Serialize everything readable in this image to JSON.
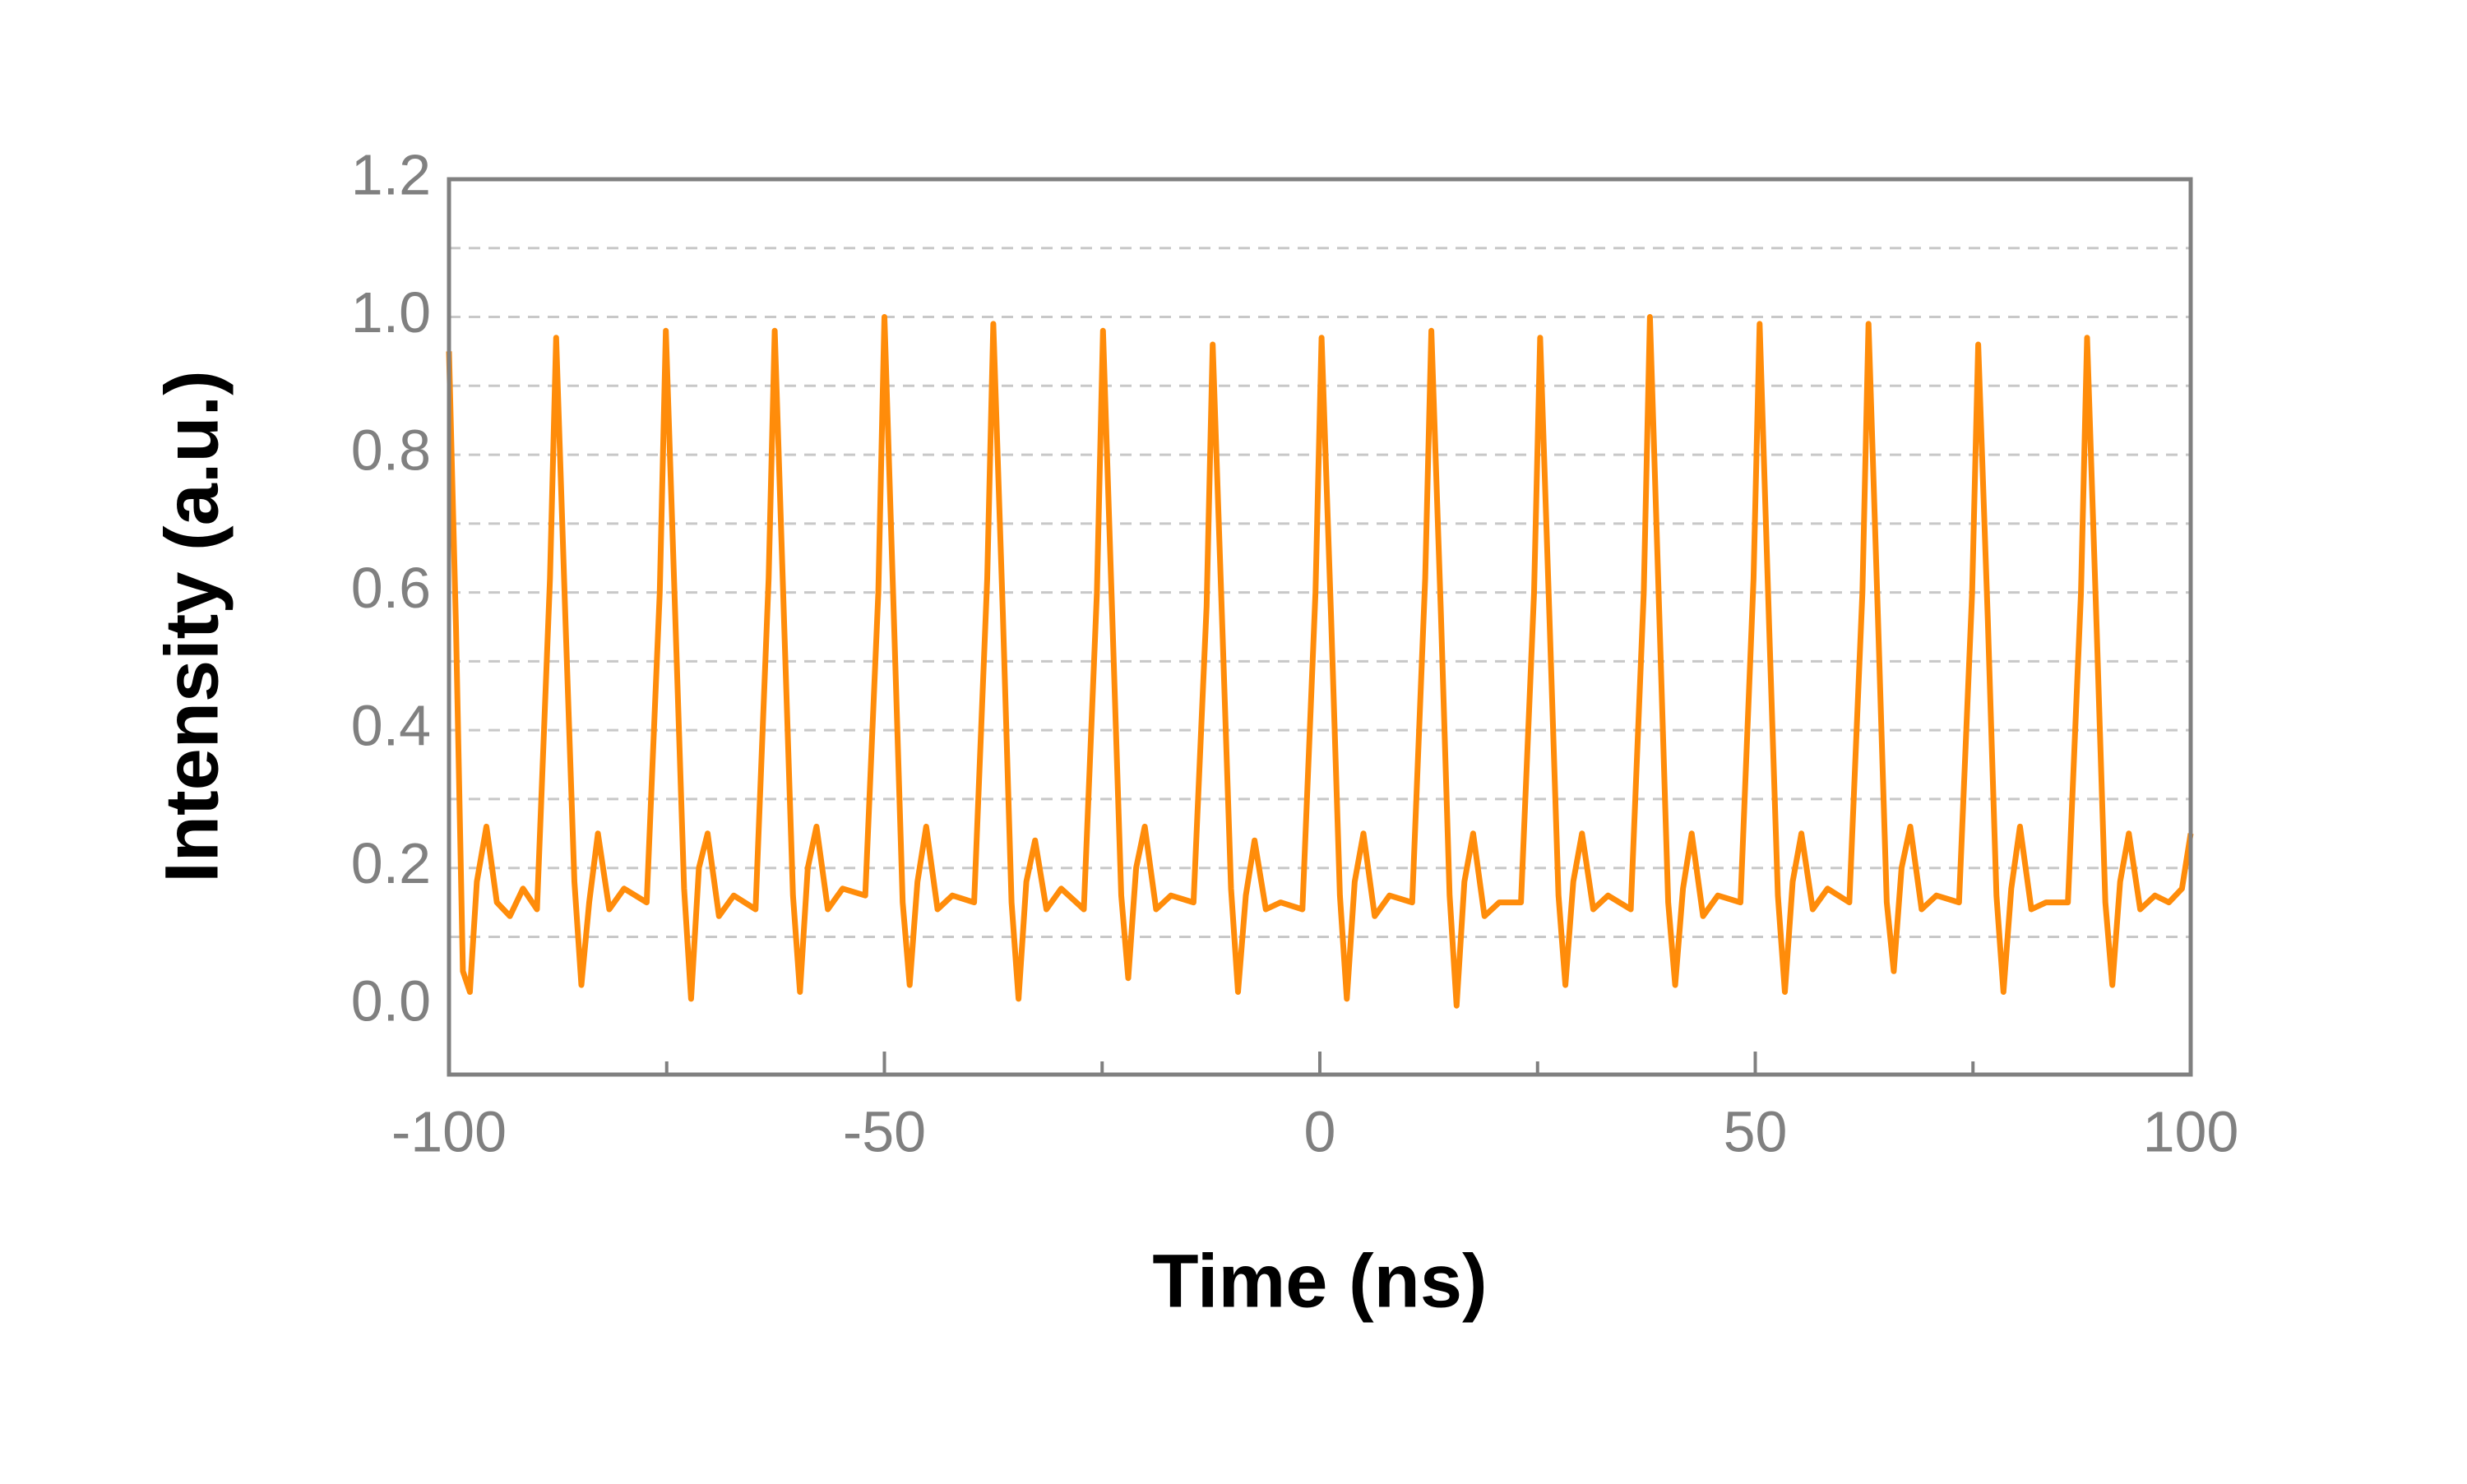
{
  "chart_data": {
    "type": "line",
    "xlabel": "Time (ns)",
    "ylabel": "Intensity (a.u.)",
    "xlim": [
      -100,
      100
    ],
    "xticks": [
      -100,
      -50,
      0,
      50,
      100
    ],
    "xminor_ticks": [
      -75,
      -25,
      25,
      75
    ],
    "ylim": [
      -0.1,
      1.2
    ],
    "yticks": [
      {
        "value": 0,
        "label": "0.0"
      },
      {
        "value": 0.2,
        "label": "0.2"
      },
      {
        "value": 0.4,
        "label": "0.4"
      },
      {
        "value": 0.6,
        "label": "0.6"
      },
      {
        "value": 0.8,
        "label": "0.8"
      },
      {
        "value": 1,
        "label": "1.0"
      },
      {
        "value": 1.2,
        "label": "1.2"
      }
    ],
    "ygrid": [
      0.1,
      0.2,
      0.3,
      0.4,
      0.5,
      0.6,
      0.7,
      0.8,
      0.9,
      1.0,
      1.1
    ],
    "grid": true,
    "color": "#ff8c0a",
    "x": [
      -100,
      -99.2,
      -98.4,
      -97.6,
      -96.8,
      -95.7,
      -94.5,
      -93,
      -91.5,
      -89.9,
      -88.4,
      -87.7,
      -86.6,
      -85.6,
      -84.8,
      -83.9,
      -82.9,
      -81.6,
      -79.9,
      -77.3,
      -75.8,
      -75.1,
      -74.0,
      -73.0,
      -72.2,
      -71.3,
      -70.3,
      -69.0,
      -67.3,
      -64.8,
      -63.3,
      -62.6,
      -61.5,
      -60.5,
      -59.7,
      -58.8,
      -57.8,
      -56.5,
      -54.8,
      -52.2,
      -50.7,
      -50.0,
      -48.9,
      -47.9,
      -47.1,
      -46.2,
      -45.2,
      -43.9,
      -42.2,
      -39.7,
      -38.2,
      -37.5,
      -36.4,
      -35.4,
      -34.6,
      -33.7,
      -32.7,
      -31.4,
      -29.7,
      -27.1,
      -25.6,
      -24.9,
      -23.8,
      -22.8,
      -22.0,
      -21.1,
      -20.1,
      -18.8,
      -17.1,
      -14.5,
      -13.0,
      -12.3,
      -11.2,
      -10.2,
      -9.4,
      -8.5,
      -7.5,
      -6.2,
      -4.5,
      -2.0,
      -0.5,
      0.2,
      1.3,
      2.3,
      3.1,
      4.0,
      5.0,
      6.3,
      8.0,
      10.6,
      12.1,
      12.8,
      13.9,
      14.9,
      15.7,
      16.6,
      17.6,
      18.9,
      20.6,
      23.1,
      24.6,
      25.3,
      26.4,
      27.4,
      28.2,
      29.1,
      30.1,
      31.4,
      33.1,
      35.7,
      37.2,
      37.9,
      39.0,
      40.0,
      40.8,
      41.7,
      42.7,
      44.0,
      45.7,
      48.3,
      49.8,
      50.5,
      51.6,
      52.6,
      53.4,
      54.3,
      55.3,
      56.6,
      58.3,
      60.8,
      62.3,
      63.0,
      64.1,
      65.1,
      65.9,
      66.8,
      67.8,
      69.1,
      70.8,
      73.4,
      74.9,
      75.6,
      76.7,
      77.7,
      78.5,
      79.4,
      80.4,
      81.7,
      83.4,
      85.9,
      87.4,
      88.1,
      89.2,
      90.2,
      91.0,
      91.9,
      92.9,
      94.2,
      95.9,
      97.5,
      99,
      100
    ],
    "series": [
      {
        "name": "Intensity",
        "values": [
          0.95,
          0.55,
          0.05,
          0.02,
          0.18,
          0.26,
          0.15,
          0.13,
          0.17,
          0.14,
          0.62,
          0.97,
          0.55,
          0.18,
          0.03,
          0.15,
          0.25,
          0.14,
          0.17,
          0.15,
          0.6,
          0.98,
          0.56,
          0.17,
          0.01,
          0.2,
          0.25,
          0.13,
          0.16,
          0.14,
          0.62,
          0.98,
          0.55,
          0.16,
          0.02,
          0.2,
          0.26,
          0.14,
          0.17,
          0.16,
          0.6,
          1.0,
          0.56,
          0.15,
          0.03,
          0.18,
          0.26,
          0.14,
          0.16,
          0.15,
          0.62,
          0.99,
          0.57,
          0.15,
          0.01,
          0.18,
          0.24,
          0.14,
          0.17,
          0.14,
          0.6,
          0.98,
          0.55,
          0.16,
          0.04,
          0.2,
          0.26,
          0.14,
          0.16,
          0.15,
          0.58,
          0.96,
          0.55,
          0.17,
          0.02,
          0.16,
          0.24,
          0.14,
          0.15,
          0.14,
          0.6,
          0.97,
          0.56,
          0.16,
          0.01,
          0.18,
          0.25,
          0.13,
          0.16,
          0.15,
          0.62,
          0.98,
          0.57,
          0.16,
          0.0,
          0.18,
          0.25,
          0.13,
          0.15,
          0.15,
          0.6,
          0.97,
          0.55,
          0.16,
          0.03,
          0.18,
          0.25,
          0.14,
          0.16,
          0.14,
          0.6,
          1.0,
          0.56,
          0.15,
          0.03,
          0.17,
          0.25,
          0.13,
          0.16,
          0.15,
          0.62,
          0.99,
          0.55,
          0.16,
          0.02,
          0.18,
          0.25,
          0.14,
          0.17,
          0.15,
          0.6,
          0.99,
          0.56,
          0.15,
          0.05,
          0.2,
          0.26,
          0.14,
          0.16,
          0.15,
          0.6,
          0.96,
          0.56,
          0.16,
          0.02,
          0.17,
          0.26,
          0.14,
          0.15,
          0.15,
          0.6,
          0.97,
          0.55,
          0.15,
          0.03,
          0.18,
          0.25,
          0.14,
          0.16,
          0.15,
          0.17,
          0.25
        ]
      }
    ]
  }
}
